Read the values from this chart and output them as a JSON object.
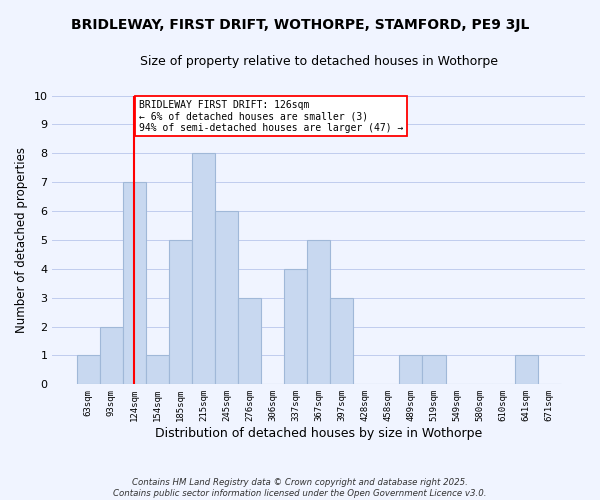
{
  "title": "BRIDLEWAY, FIRST DRIFT, WOTHORPE, STAMFORD, PE9 3JL",
  "subtitle": "Size of property relative to detached houses in Wothorpe",
  "xlabel": "Distribution of detached houses by size in Wothorpe",
  "ylabel": "Number of detached properties",
  "bar_color": "#c8d8f0",
  "bar_edgecolor": "#a0b8d8",
  "annotation_line_color": "red",
  "annotation_text_line1": "BRIDLEWAY FIRST DRIFT: 126sqm",
  "annotation_text_line2": "← 6% of detached houses are smaller (3)",
  "annotation_text_line3": "94% of semi-detached houses are larger (47) →",
  "footer_line1": "Contains HM Land Registry data © Crown copyright and database right 2025.",
  "footer_line2": "Contains public sector information licensed under the Open Government Licence v3.0.",
  "categories": [
    "63sqm",
    "93sqm",
    "124sqm",
    "154sqm",
    "185sqm",
    "215sqm",
    "245sqm",
    "276sqm",
    "306sqm",
    "337sqm",
    "367sqm",
    "397sqm",
    "428sqm",
    "458sqm",
    "489sqm",
    "519sqm",
    "549sqm",
    "580sqm",
    "610sqm",
    "641sqm",
    "671sqm"
  ],
  "values": [
    1,
    2,
    7,
    1,
    5,
    8,
    6,
    3,
    0,
    4,
    5,
    3,
    0,
    0,
    1,
    1,
    0,
    0,
    0,
    1,
    0
  ],
  "ylim": [
    0,
    10
  ],
  "yticks": [
    0,
    1,
    2,
    3,
    4,
    5,
    6,
    7,
    8,
    9,
    10
  ],
  "background_color": "#f0f4ff",
  "plot_background": "#e8eeff",
  "grid_color": "#c0ccee"
}
